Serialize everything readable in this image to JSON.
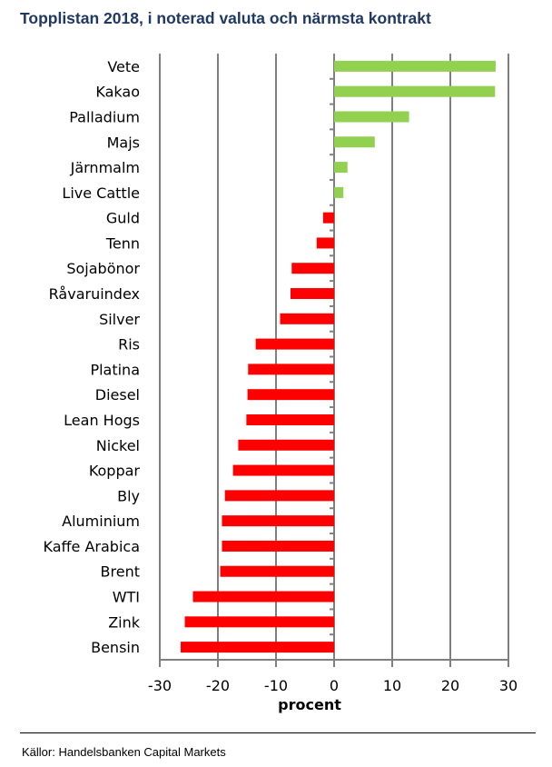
{
  "chart_data": {
    "type": "bar",
    "orientation": "horizontal",
    "title": "Topplistan 2018, i noterad valuta och närmsta kontrakt",
    "xlabel": "procent",
    "ylabel": "",
    "xlim": [
      -30,
      30
    ],
    "xticks": [
      -30,
      -20,
      -10,
      0,
      10,
      20,
      30
    ],
    "grid": true,
    "categories": [
      "Vete",
      "Kakao",
      "Palladium",
      "Majs",
      "Järnmalm",
      "Live Cattle",
      "Guld",
      "Tenn",
      "Sojabönor",
      "Råvaruindex",
      "Silver",
      "Ris",
      "Platina",
      "Diesel",
      "Lean Hogs",
      "Nickel",
      "Koppar",
      "Bly",
      "Aluminium",
      "Kaffe Arabica",
      "Brent",
      "WTI",
      "Zink",
      "Bensin"
    ],
    "values": [
      27.8,
      27.7,
      12.9,
      7.0,
      2.3,
      1.6,
      -1.9,
      -3.0,
      -7.3,
      -7.5,
      -9.3,
      -13.5,
      -14.8,
      -14.9,
      -15.1,
      -16.5,
      -17.4,
      -18.8,
      -19.3,
      -19.3,
      -19.6,
      -24.3,
      -25.7,
      -26.4
    ],
    "colors": {
      "positive": "#92d050",
      "negative": "#ff0000",
      "grid": "#808080"
    }
  },
  "source": "Källor: Handelsbanken Capital Markets"
}
